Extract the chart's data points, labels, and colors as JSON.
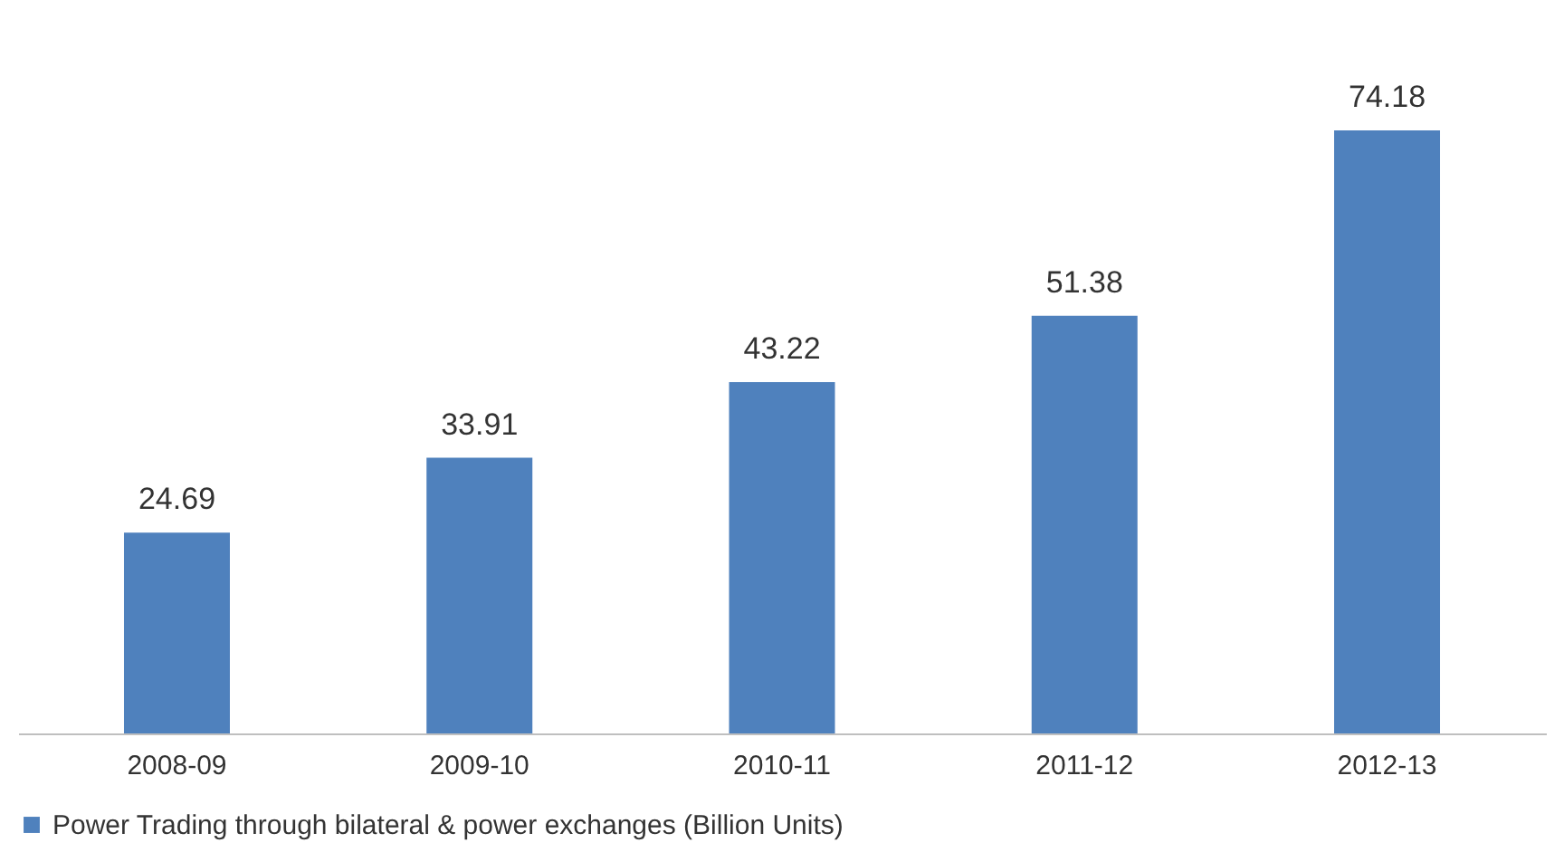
{
  "chart_data": {
    "type": "bar",
    "categories": [
      "2008-09",
      "2009-10",
      "2010-11",
      "2011-12",
      "2012-13"
    ],
    "series": [
      {
        "name": "Power Trading through bilateral & power exchanges (Billion Units)",
        "color": "#4f81bd",
        "values": [
          24.69,
          33.91,
          43.22,
          51.38,
          74.18
        ]
      }
    ],
    "data_labels": true,
    "legend": "bottom",
    "grid": false
  }
}
